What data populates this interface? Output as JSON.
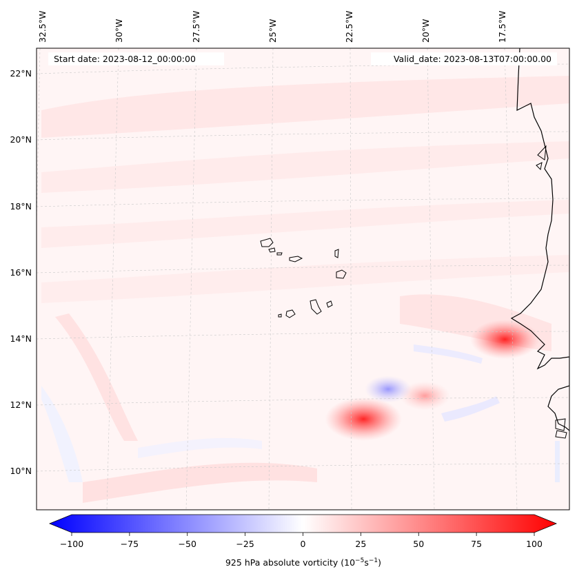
{
  "map": {
    "start_label": "Start date: 2023-08-12_00:00:00",
    "valid_label": "Valid_date: 2023-08-13T07:00:00.00",
    "lon_ticks": [
      "32.5°W",
      "30°W",
      "27.5°W",
      "25°W",
      "22.5°W",
      "20°W",
      "17.5°W"
    ],
    "lat_ticks": [
      "22°N",
      "20°N",
      "18°N",
      "16°N",
      "14°N",
      "12°N",
      "10°N"
    ],
    "field": "925 hPa absolute vorticity",
    "features": [
      {
        "name": "vorticity-max-west-africa-coast",
        "lon": -17.4,
        "lat": 14.0,
        "value": 55
      },
      {
        "name": "vorticity-max-south",
        "lon": -22.0,
        "lat": 11.6,
        "value": 65
      },
      {
        "name": "vorticity-max-small",
        "lon": -20.0,
        "lat": 12.3,
        "value": 30
      },
      {
        "name": "vorticity-min",
        "lon": -21.2,
        "lat": 12.5,
        "value": -25
      }
    ]
  },
  "colorbar": {
    "ticks": [
      "−100",
      "−75",
      "−50",
      "−25",
      "0",
      "25",
      "50",
      "75",
      "100"
    ],
    "range": [
      -100,
      100
    ],
    "label_prefix": "925 hPa absolute vorticity (10",
    "label_exp1": "−5",
    "label_mid": "s",
    "label_exp2": "−1",
    "label_suffix": ")",
    "min_color": "#0000ff",
    "mid_color": "#ffffff",
    "max_color": "#ff0000"
  }
}
